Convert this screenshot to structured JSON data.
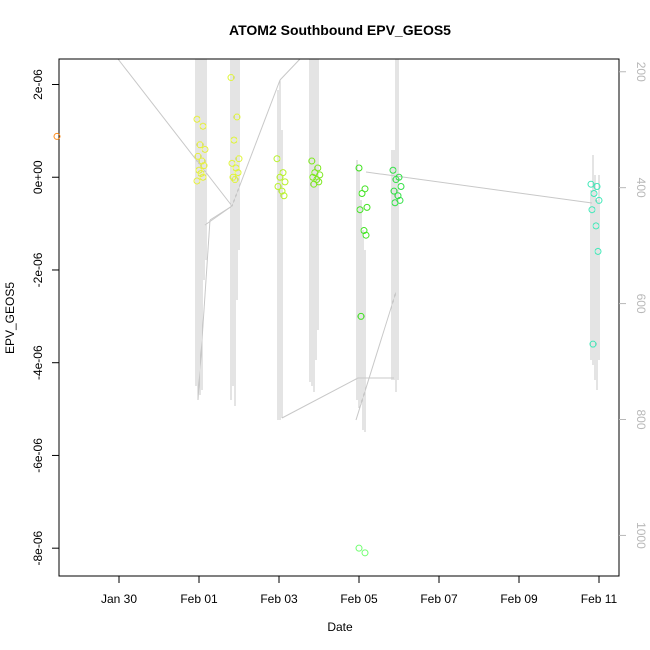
{
  "chart_data": {
    "type": "scatter",
    "title": "ATOM2 Southbound EPV_GEOS5",
    "xlabel": "Date",
    "ylabel": "EPV_GEOS5",
    "x_ticks": [
      {
        "value": 29.0,
        "label": "Jan 30"
      },
      {
        "value": 31.0,
        "label": "Feb 01"
      },
      {
        "value": 33.0,
        "label": "Feb 03"
      },
      {
        "value": 35.0,
        "label": "Feb 05"
      },
      {
        "value": 37.0,
        "label": "Feb 07"
      },
      {
        "value": 39.0,
        "label": "Feb 09"
      },
      {
        "value": 41.0,
        "label": "Feb 11"
      }
    ],
    "xlim": [
      27.5,
      41.5
    ],
    "ylim": [
      -8.6e-06,
      2.55e-06
    ],
    "y_ticks": [
      {
        "value": 2e-06,
        "label": "2e-06"
      },
      {
        "value": 0,
        "label": "0e+00"
      },
      {
        "value": -2e-06,
        "label": "-2e-06"
      },
      {
        "value": -4e-06,
        "label": "-4e-06"
      },
      {
        "value": -6e-06,
        "label": "-6e-06"
      },
      {
        "value": -8e-06,
        "label": "-8e-06"
      }
    ],
    "secondary_axis": {
      "label_color": "#b8b8b8",
      "ylim": [
        178,
        1070
      ],
      "ticks": [
        {
          "value": 200,
          "label": "200"
        },
        {
          "value": 400,
          "label": "400"
        },
        {
          "value": 600,
          "label": "600"
        },
        {
          "value": 800,
          "label": "800"
        },
        {
          "value": 1000,
          "label": "1000"
        }
      ]
    },
    "grid": false,
    "trace_color": "#c8c8c8",
    "point_groups": [
      {
        "x": 27.55,
        "color": "#ff8c1a",
        "y": [
          8.8e-07
        ]
      },
      {
        "x": 31.05,
        "color": "#e6f03c",
        "y": [
          1.25e-06,
          1.1e-06,
          7e-07,
          6e-07,
          4.5e-07,
          3.5e-07,
          2.5e-07,
          1.5e-07,
          8e-08,
          0,
          -8e-08
        ]
      },
      {
        "x": 31.9,
        "color": "#e0f53a",
        "y": [
          2.15e-06,
          1.3e-06,
          8e-07,
          4e-07,
          3e-07,
          2e-07,
          1e-07,
          0,
          -5e-08
        ]
      },
      {
        "x": 33.05,
        "color": "#b8f22a",
        "y": [
          4e-07,
          1e-07,
          0,
          -1e-07,
          -2e-07,
          -3e-07,
          -4e-07
        ]
      },
      {
        "x": 33.92,
        "color": "#7de81e",
        "y": [
          3.5e-07,
          2e-07,
          1e-07,
          5e-08,
          0,
          -5e-08,
          -1e-07,
          -1.5e-07
        ]
      },
      {
        "x": 35.1,
        "color": "#3fe31f",
        "y": [
          2e-07,
          -2.5e-07,
          -3.5e-07,
          -6.5e-07,
          -7e-07,
          -1.15e-06,
          -1.25e-06,
          -3e-06
        ]
      },
      {
        "x": 35.1,
        "color": "#6fff6f",
        "y": [
          -8e-06,
          -8.1e-06
        ]
      },
      {
        "x": 35.95,
        "color": "#32e046",
        "y": [
          1.5e-07,
          0,
          -5e-08,
          -2e-07,
          -3e-07,
          -4e-07,
          -5e-07,
          -5.5e-07
        ]
      },
      {
        "x": 40.9,
        "color": "#40e8b8",
        "y": [
          -1.5e-07,
          -2e-07,
          -3.5e-07,
          -5e-07,
          -7e-07,
          -1.05e-06,
          -1.6e-06,
          -3.6e-06
        ]
      }
    ]
  }
}
